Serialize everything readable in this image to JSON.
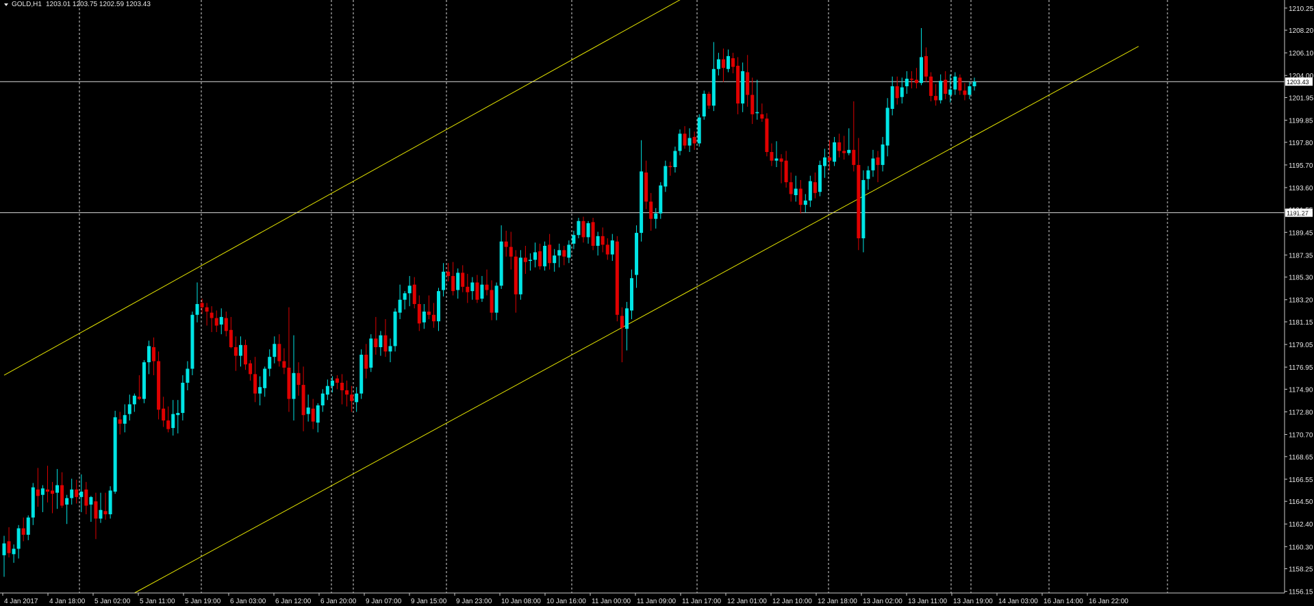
{
  "header": {
    "symbol_label": "GOLD,H1",
    "ohlc": "1203.01 1203.75 1202.59 1203.43"
  },
  "colors": {
    "background": "#000000",
    "bull": "#00e5e5",
    "bear": "#e00000",
    "channel": "#e6e600",
    "grid": "#ffffff",
    "text": "#e8e8e8"
  },
  "chart_data": {
    "type": "candlestick",
    "timeframe": "H1",
    "ylim": [
      1156.0,
      1211.0
    ],
    "y_ticks": [
      "1210.25",
      "1208.20",
      "1206.10",
      "1204.00",
      "1201.95",
      "1199.85",
      "1197.80",
      "1195.70",
      "1193.60",
      "1191.55",
      "1189.45",
      "1187.35",
      "1185.30",
      "1183.20",
      "1181.15",
      "1179.05",
      "1176.95",
      "1174.90",
      "1172.80",
      "1170.70",
      "1168.65",
      "1166.55",
      "1164.50",
      "1162.40",
      "1160.30",
      "1158.25",
      "1156.15"
    ],
    "x_ticks": [
      "4 Jan 2017",
      "4 Jan 18:00",
      "5 Jan 02:00",
      "5 Jan 11:00",
      "5 Jan 19:00",
      "6 Jan 03:00",
      "6 Jan 12:00",
      "6 Jan 20:00",
      "9 Jan 07:00",
      "9 Jan 15:00",
      "9 Jan 23:00",
      "10 Jan 08:00",
      "10 Jan 16:00",
      "11 Jan 00:00",
      "11 Jan 09:00",
      "11 Jan 17:00",
      "12 Jan 01:00",
      "12 Jan 10:00",
      "12 Jan 18:00",
      "13 Jan 02:00",
      "13 Jan 11:00",
      "13 Jan 19:00",
      "14 Jan 03:00",
      "16 Jan 14:00",
      "16 Jan 22:00"
    ],
    "price_lines": [
      {
        "value": 1203.43,
        "label": "1203.43"
      },
      {
        "value": 1191.27,
        "label": "1191.27"
      }
    ],
    "channel": [
      {
        "from": [
          0,
          1176.2
        ],
        "to": [
          150,
          1213.5
        ]
      },
      {
        "from": [
          27,
          1156.0
        ],
        "to": [
          235,
          1206.7
        ]
      }
    ],
    "candles": [
      [
        1159.5,
        1161.3,
        1157.5,
        1160.6
      ],
      [
        1160.8,
        1162.1,
        1159.3,
        1159.7
      ],
      [
        1159.6,
        1160.5,
        1158.8,
        1160.1
      ],
      [
        1160.1,
        1162.3,
        1159.2,
        1162.0
      ],
      [
        1162.0,
        1163.0,
        1160.8,
        1161.4
      ],
      [
        1161.4,
        1163.2,
        1160.9,
        1163.0
      ],
      [
        1163.0,
        1166.2,
        1162.3,
        1165.8
      ],
      [
        1165.6,
        1167.6,
        1164.0,
        1165.0
      ],
      [
        1165.1,
        1166.0,
        1163.5,
        1165.7
      ],
      [
        1165.6,
        1167.8,
        1164.4,
        1165.4
      ],
      [
        1165.5,
        1166.3,
        1163.4,
        1165.2
      ],
      [
        1165.3,
        1167.5,
        1163.8,
        1166.0
      ],
      [
        1166.0,
        1167.2,
        1163.9,
        1164.1
      ],
      [
        1164.2,
        1165.1,
        1162.4,
        1164.8
      ],
      [
        1164.8,
        1166.6,
        1164.2,
        1165.6
      ],
      [
        1165.6,
        1166.5,
        1164.3,
        1164.9
      ],
      [
        1164.9,
        1167.0,
        1163.5,
        1165.4
      ],
      [
        1165.6,
        1166.3,
        1163.3,
        1164.1
      ],
      [
        1164.2,
        1165.0,
        1162.6,
        1164.9
      ],
      [
        1164.5,
        1165.3,
        1161.0,
        1162.9
      ],
      [
        1162.9,
        1165.3,
        1162.5,
        1163.7
      ],
      [
        1163.6,
        1165.3,
        1162.8,
        1163.3
      ],
      [
        1163.3,
        1165.9,
        1162.9,
        1165.5
      ],
      [
        1165.4,
        1172.9,
        1165.2,
        1172.3
      ],
      [
        1172.1,
        1172.8,
        1170.7,
        1171.7
      ],
      [
        1171.7,
        1173.5,
        1170.9,
        1172.5
      ],
      [
        1172.6,
        1174.4,
        1172.0,
        1173.5
      ],
      [
        1173.5,
        1174.5,
        1172.8,
        1174.3
      ],
      [
        1174.2,
        1176.2,
        1173.9,
        1174.0
      ],
      [
        1174.0,
        1177.6,
        1173.6,
        1177.4
      ],
      [
        1177.4,
        1179.4,
        1176.3,
        1178.9
      ],
      [
        1178.8,
        1179.7,
        1176.2,
        1177.5
      ],
      [
        1177.5,
        1178.4,
        1172.1,
        1173.0
      ],
      [
        1173.1,
        1174.2,
        1171.4,
        1172.0
      ],
      [
        1172.0,
        1173.3,
        1170.9,
        1171.2
      ],
      [
        1171.3,
        1173.9,
        1170.6,
        1172.6
      ],
      [
        1172.5,
        1173.9,
        1170.8,
        1172.7
      ],
      [
        1172.7,
        1176.2,
        1172.0,
        1175.5
      ],
      [
        1175.5,
        1177.5,
        1174.8,
        1176.8
      ],
      [
        1176.8,
        1182.1,
        1176.2,
        1181.8
      ],
      [
        1181.8,
        1184.8,
        1181.1,
        1182.8
      ],
      [
        1182.9,
        1183.3,
        1181.9,
        1182.5
      ],
      [
        1182.5,
        1182.9,
        1180.8,
        1182.1
      ],
      [
        1182.0,
        1182.6,
        1180.2,
        1181.5
      ],
      [
        1181.5,
        1182.2,
        1180.2,
        1180.8
      ],
      [
        1180.9,
        1182.4,
        1180.0,
        1181.6
      ],
      [
        1181.5,
        1182.1,
        1179.8,
        1180.3
      ],
      [
        1180.4,
        1181.6,
        1178.7,
        1178.8
      ],
      [
        1178.8,
        1179.8,
        1176.6,
        1178.0
      ],
      [
        1178.0,
        1179.8,
        1177.0,
        1179.0
      ],
      [
        1179.0,
        1179.5,
        1176.7,
        1177.2
      ],
      [
        1177.3,
        1177.6,
        1175.7,
        1176.3
      ],
      [
        1176.3,
        1177.9,
        1173.7,
        1174.5
      ],
      [
        1174.5,
        1176.1,
        1173.4,
        1175.1
      ],
      [
        1175.0,
        1177.0,
        1174.2,
        1176.8
      ],
      [
        1176.8,
        1178.6,
        1176.1,
        1177.9
      ],
      [
        1177.9,
        1179.8,
        1177.3,
        1179.1
      ],
      [
        1179.1,
        1180.0,
        1177.0,
        1177.5
      ],
      [
        1177.5,
        1178.7,
        1176.3,
        1176.9
      ],
      [
        1176.9,
        1182.5,
        1172.8,
        1174.0
      ],
      [
        1174.0,
        1179.9,
        1172.0,
        1176.4
      ],
      [
        1176.4,
        1177.4,
        1174.3,
        1175.3
      ],
      [
        1175.3,
        1177.0,
        1171.0,
        1172.5
      ],
      [
        1172.6,
        1174.4,
        1171.9,
        1173.2
      ],
      [
        1173.1,
        1174.0,
        1171.2,
        1171.9
      ],
      [
        1171.8,
        1173.6,
        1170.9,
        1173.4
      ],
      [
        1173.4,
        1174.9,
        1172.8,
        1174.5
      ],
      [
        1174.4,
        1175.8,
        1173.9,
        1175.2
      ],
      [
        1175.2,
        1176.1,
        1174.6,
        1175.7
      ],
      [
        1175.9,
        1176.2,
        1174.9,
        1175.5
      ],
      [
        1175.5,
        1176.3,
        1173.5,
        1174.8
      ],
      [
        1174.8,
        1175.7,
        1173.3,
        1174.4
      ],
      [
        1174.4,
        1175.2,
        1172.8,
        1173.8
      ],
      [
        1173.7,
        1175.1,
        1172.8,
        1174.5
      ],
      [
        1174.5,
        1178.6,
        1174.0,
        1178.1
      ],
      [
        1178.1,
        1179.1,
        1175.9,
        1176.8
      ],
      [
        1176.9,
        1180.0,
        1176.5,
        1179.6
      ],
      [
        1179.6,
        1181.6,
        1178.1,
        1178.8
      ],
      [
        1178.8,
        1180.3,
        1178.0,
        1179.9
      ],
      [
        1179.9,
        1181.4,
        1177.9,
        1178.4
      ],
      [
        1178.4,
        1179.6,
        1177.4,
        1178.9
      ],
      [
        1178.9,
        1182.4,
        1178.4,
        1182.1
      ],
      [
        1182.0,
        1184.6,
        1181.4,
        1183.2
      ],
      [
        1183.2,
        1184.0,
        1182.3,
        1183.8
      ],
      [
        1183.8,
        1185.4,
        1182.6,
        1184.5
      ],
      [
        1184.6,
        1185.3,
        1182.4,
        1182.8
      ],
      [
        1182.8,
        1183.6,
        1180.3,
        1181.0
      ],
      [
        1181.1,
        1182.8,
        1180.5,
        1182.1
      ],
      [
        1182.1,
        1183.6,
        1181.4,
        1181.8
      ],
      [
        1181.8,
        1182.9,
        1180.6,
        1181.2
      ],
      [
        1181.2,
        1184.3,
        1180.3,
        1184.0
      ],
      [
        1184.1,
        1186.6,
        1183.5,
        1185.8
      ],
      [
        1185.8,
        1186.6,
        1184.9,
        1185.4
      ],
      [
        1185.4,
        1186.7,
        1183.6,
        1184.0
      ],
      [
        1184.1,
        1186.1,
        1183.3,
        1185.7
      ],
      [
        1185.7,
        1186.4,
        1183.9,
        1184.4
      ],
      [
        1184.4,
        1185.6,
        1182.9,
        1183.9
      ],
      [
        1184.0,
        1185.3,
        1183.2,
        1184.8
      ],
      [
        1184.8,
        1185.5,
        1182.9,
        1183.2
      ],
      [
        1183.3,
        1185.4,
        1183.0,
        1184.6
      ],
      [
        1184.6,
        1186.0,
        1183.6,
        1184.1
      ],
      [
        1184.1,
        1185.0,
        1181.3,
        1182.0
      ],
      [
        1182.0,
        1184.8,
        1181.3,
        1184.5
      ],
      [
        1184.5,
        1190.1,
        1184.2,
        1188.6
      ],
      [
        1188.6,
        1189.6,
        1187.2,
        1188.1
      ],
      [
        1188.1,
        1189.5,
        1186.0,
        1187.2
      ],
      [
        1187.2,
        1187.8,
        1182.0,
        1183.7
      ],
      [
        1183.7,
        1187.8,
        1183.2,
        1187.1
      ],
      [
        1187.1,
        1188.2,
        1185.6,
        1186.7
      ],
      [
        1186.8,
        1187.5,
        1185.9,
        1186.9
      ],
      [
        1186.9,
        1188.5,
        1186.2,
        1187.6
      ],
      [
        1187.7,
        1188.4,
        1186.0,
        1186.3
      ],
      [
        1186.3,
        1188.6,
        1185.9,
        1188.2
      ],
      [
        1188.3,
        1189.3,
        1186.0,
        1186.6
      ],
      [
        1186.6,
        1187.9,
        1185.8,
        1187.3
      ],
      [
        1187.3,
        1188.4,
        1186.2,
        1187.8
      ],
      [
        1187.8,
        1188.2,
        1186.4,
        1187.2
      ],
      [
        1187.1,
        1188.7,
        1186.6,
        1188.3
      ],
      [
        1188.4,
        1189.6,
        1187.9,
        1189.2
      ],
      [
        1189.2,
        1190.8,
        1188.9,
        1190.5
      ],
      [
        1190.5,
        1190.9,
        1188.5,
        1189.0
      ],
      [
        1189.0,
        1190.5,
        1188.4,
        1190.3
      ],
      [
        1190.4,
        1190.8,
        1187.8,
        1188.2
      ],
      [
        1188.2,
        1189.5,
        1187.3,
        1189.1
      ],
      [
        1189.1,
        1189.9,
        1187.6,
        1188.3
      ],
      [
        1188.3,
        1188.9,
        1186.9,
        1187.4
      ],
      [
        1187.4,
        1189.3,
        1186.8,
        1188.7
      ],
      [
        1188.6,
        1189.1,
        1181.2,
        1181.8
      ],
      [
        1181.7,
        1182.5,
        1177.4,
        1180.6
      ],
      [
        1180.5,
        1183.0,
        1178.5,
        1182.4
      ],
      [
        1182.2,
        1186.0,
        1181.4,
        1185.2
      ],
      [
        1185.5,
        1190.1,
        1184.3,
        1189.4
      ],
      [
        1189.4,
        1198.0,
        1188.6,
        1195.1
      ],
      [
        1195.0,
        1196.1,
        1191.6,
        1192.3
      ],
      [
        1192.3,
        1193.1,
        1189.6,
        1190.7
      ],
      [
        1190.7,
        1191.7,
        1189.8,
        1191.2
      ],
      [
        1191.2,
        1194.1,
        1190.7,
        1193.8
      ],
      [
        1193.7,
        1196.1,
        1193.2,
        1195.6
      ],
      [
        1195.6,
        1196.0,
        1194.7,
        1195.5
      ],
      [
        1195.5,
        1197.4,
        1195.0,
        1197.0
      ],
      [
        1197.0,
        1199.0,
        1196.6,
        1198.6
      ],
      [
        1198.6,
        1199.3,
        1197.2,
        1197.5
      ],
      [
        1197.5,
        1199.1,
        1196.9,
        1198.2
      ],
      [
        1198.3,
        1198.8,
        1197.1,
        1197.7
      ],
      [
        1197.7,
        1200.4,
        1197.4,
        1200.1
      ],
      [
        1200.2,
        1202.6,
        1199.9,
        1202.3
      ],
      [
        1202.3,
        1202.5,
        1200.9,
        1201.2
      ],
      [
        1201.2,
        1207.1,
        1200.7,
        1204.6
      ],
      [
        1204.6,
        1206.1,
        1204.0,
        1205.5
      ],
      [
        1205.5,
        1206.5,
        1203.4,
        1204.7
      ],
      [
        1204.6,
        1206.4,
        1204.3,
        1205.8
      ],
      [
        1205.6,
        1206.1,
        1204.2,
        1204.8
      ],
      [
        1204.9,
        1205.7,
        1200.4,
        1201.4
      ],
      [
        1201.4,
        1205.2,
        1200.6,
        1204.4
      ],
      [
        1204.3,
        1205.9,
        1201.1,
        1202.2
      ],
      [
        1202.2,
        1203.8,
        1199.5,
        1200.4
      ],
      [
        1200.5,
        1203.6,
        1199.9,
        1200.6
      ],
      [
        1200.4,
        1201.4,
        1199.7,
        1200.0
      ],
      [
        1200.0,
        1200.5,
        1196.5,
        1196.9
      ],
      [
        1196.9,
        1197.7,
        1195.6,
        1196.1
      ],
      [
        1196.1,
        1197.9,
        1195.5,
        1196.3
      ],
      [
        1196.3,
        1196.7,
        1194.0,
        1196.0
      ],
      [
        1196.1,
        1197.0,
        1193.6,
        1194.1
      ],
      [
        1194.1,
        1195.0,
        1192.3,
        1193.0
      ],
      [
        1192.9,
        1194.7,
        1192.3,
        1193.5
      ],
      [
        1193.5,
        1194.3,
        1191.2,
        1192.0
      ],
      [
        1192.0,
        1193.0,
        1191.3,
        1192.4
      ],
      [
        1192.4,
        1194.7,
        1191.8,
        1194.2
      ],
      [
        1194.1,
        1195.0,
        1192.6,
        1193.1
      ],
      [
        1193.2,
        1196.1,
        1192.8,
        1195.7
      ],
      [
        1195.6,
        1197.2,
        1194.5,
        1196.4
      ],
      [
        1196.4,
        1198.0,
        1195.2,
        1196.1
      ],
      [
        1196.0,
        1198.3,
        1195.6,
        1197.8
      ],
      [
        1197.8,
        1198.6,
        1196.4,
        1197.0
      ],
      [
        1197.0,
        1198.4,
        1196.2,
        1196.8
      ],
      [
        1196.8,
        1199.1,
        1196.6,
        1197.1
      ],
      [
        1197.1,
        1201.6,
        1195.1,
        1195.7
      ],
      [
        1195.7,
        1198.2,
        1187.8,
        1188.9
      ],
      [
        1188.9,
        1195.2,
        1187.6,
        1194.3
      ],
      [
        1194.4,
        1195.6,
        1193.4,
        1195.2
      ],
      [
        1195.2,
        1197.1,
        1194.6,
        1196.3
      ],
      [
        1196.4,
        1197.0,
        1194.1,
        1195.7
      ],
      [
        1195.7,
        1198.3,
        1195.1,
        1197.6
      ],
      [
        1197.5,
        1201.9,
        1196.5,
        1201.0
      ],
      [
        1200.9,
        1203.9,
        1200.3,
        1203.0
      ],
      [
        1203.0,
        1203.9,
        1201.3,
        1201.9
      ],
      [
        1202.0,
        1203.8,
        1201.4,
        1202.9
      ],
      [
        1203.0,
        1204.4,
        1202.3,
        1203.7
      ],
      [
        1203.7,
        1204.4,
        1202.8,
        1203.6
      ],
      [
        1203.6,
        1204.7,
        1202.8,
        1203.3
      ],
      [
        1203.3,
        1208.4,
        1203.1,
        1205.7
      ],
      [
        1205.8,
        1206.6,
        1203.4,
        1203.9
      ],
      [
        1203.9,
        1204.3,
        1201.6,
        1202.1
      ],
      [
        1202.1,
        1203.2,
        1201.2,
        1201.7
      ],
      [
        1201.7,
        1204.1,
        1201.4,
        1203.5
      ],
      [
        1203.6,
        1204.4,
        1201.8,
        1202.3
      ],
      [
        1202.2,
        1204.1,
        1201.5,
        1202.7
      ],
      [
        1202.7,
        1204.3,
        1202.2,
        1203.9
      ],
      [
        1203.8,
        1204.1,
        1202.2,
        1202.6
      ],
      [
        1202.6,
        1203.3,
        1201.7,
        1202.2
      ],
      [
        1202.2,
        1203.4,
        1201.8,
        1203.0
      ],
      [
        1203.0,
        1203.8,
        1202.6,
        1203.43
      ]
    ]
  }
}
